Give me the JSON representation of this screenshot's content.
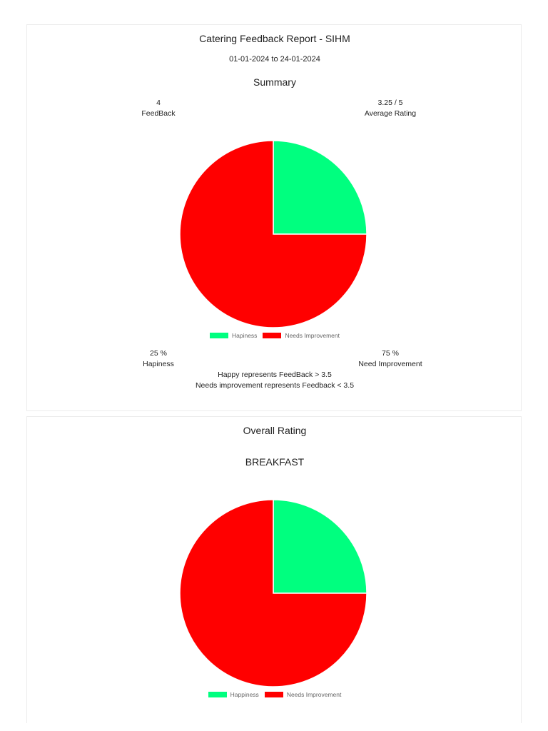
{
  "report": {
    "title": "Catering Feedback Report - SIHM",
    "date_range": "01-01-2024 to 24-01-2024"
  },
  "summary": {
    "heading": "Summary",
    "feedback_count": "4",
    "feedback_label": "FeedBack",
    "average_rating": "3.25 / 5",
    "average_label": "Average Rating",
    "happiness_pct": "25 %",
    "happiness_label": "Hapiness",
    "need_improvement_pct": "75 %",
    "need_improvement_label": "Need Improvement",
    "note_happy": "Happy represents FeedBack > 3.5",
    "note_needs": "Needs improvement represents Feedback < 3.5"
  },
  "overall": {
    "heading": "Overall Rating",
    "meal": "BREAKFAST"
  },
  "colors": {
    "happy": "#00ff7f",
    "needs_improvement": "#ff0000",
    "slice_border": "#ffffff"
  },
  "chart_data": [
    {
      "type": "pie",
      "categories": [
        "Hapiness",
        "Needs Improvement"
      ],
      "values": [
        25,
        75
      ],
      "colors": [
        "#00ff7f",
        "#ff0000"
      ],
      "legend_position": "bottom"
    },
    {
      "type": "pie",
      "title": "BREAKFAST",
      "categories": [
        "Happiness",
        "Needs Improvement"
      ],
      "values": [
        25,
        75
      ],
      "colors": [
        "#00ff7f",
        "#ff0000"
      ],
      "legend_position": "bottom"
    }
  ]
}
